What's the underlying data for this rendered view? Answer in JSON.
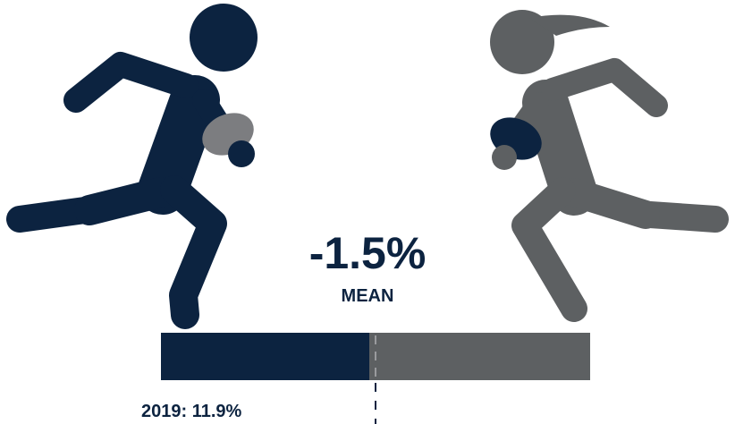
{
  "stat": {
    "value": "-1.5%",
    "label": "MEAN"
  },
  "note": "2019: 11.9%"
}
